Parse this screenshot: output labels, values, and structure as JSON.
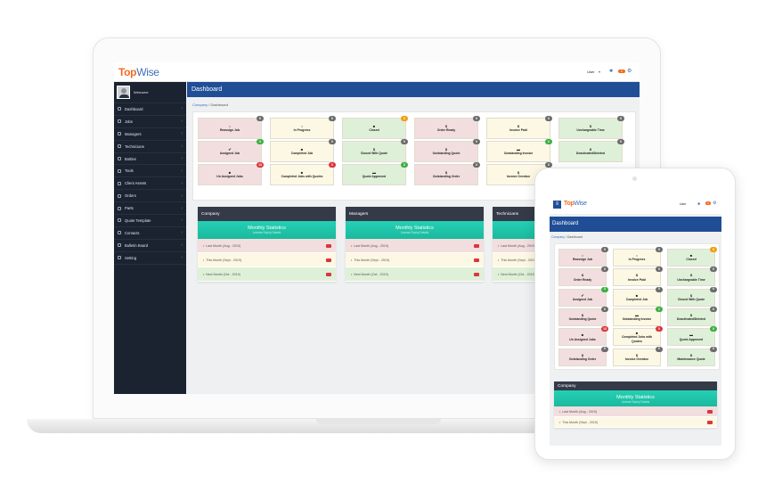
{
  "app": {
    "logo": "TopWise",
    "user_menu": "User",
    "notif_badge": "0"
  },
  "sidebar": {
    "welcome": "Welcome",
    "items": [
      "Dashboard",
      "Jobs",
      "Managers",
      "Technicians",
      "Bottles",
      "Tools",
      "Client Assets",
      "Orders",
      "Parts",
      "Quote Template",
      "Contacts",
      "Bulletin Board",
      "Setting"
    ]
  },
  "page": {
    "title": "Dashboard",
    "breadcrumb": [
      "Company",
      "Dashboard"
    ]
  },
  "colors": {
    "pink": "#f2dede",
    "yellow": "#fcf8e3",
    "green": "#dff0d8",
    "gray": "#6c6c6c",
    "badge_green": "#3cb043",
    "badge_red": "#d9363e",
    "badge_orange": "#f39c12",
    "header_blue": "#1f4e96",
    "teal": "#1fc8ab"
  },
  "laptop_tiles": [
    [
      {
        "label": "Reassign Job",
        "icon": "○",
        "count": "0",
        "badge": "gray"
      },
      {
        "label": "Assigned Job",
        "icon": "✔",
        "count": "3",
        "badge": "badge_green"
      },
      {
        "label": "Un Assigned Jobs",
        "icon": "■",
        "count": "13",
        "badge": "badge_red"
      }
    ],
    [
      {
        "label": "In Progress",
        "icon": "○",
        "count": "0",
        "badge": "gray"
      },
      {
        "label": "Completed Job",
        "icon": "■",
        "count": "0",
        "badge": "gray"
      },
      {
        "label": "Completed Jobs with Quotes",
        "icon": "■",
        "count": "0",
        "badge": "badge_red"
      }
    ],
    [
      {
        "label": "Closed",
        "icon": "■",
        "count": "0",
        "badge": "badge_orange"
      },
      {
        "label": "Closed With Quote",
        "icon": "$",
        "count": "0",
        "badge": "gray"
      },
      {
        "label": "Quote Approved",
        "icon": "▬",
        "count": "0",
        "badge": "badge_green"
      }
    ],
    [
      {
        "label": "Order Ready",
        "icon": "$",
        "count": "0",
        "badge": "gray"
      },
      {
        "label": "Outstanding Quote",
        "icon": "$",
        "count": "0",
        "badge": "gray"
      },
      {
        "label": "Outstanding Order",
        "icon": "$",
        "count": "0",
        "badge": "gray"
      }
    ],
    [
      {
        "label": "Invoice Paid",
        "icon": "$",
        "count": "0",
        "badge": "gray"
      },
      {
        "label": "Outstanding Invoice",
        "icon": "▬",
        "count": "2",
        "badge": "badge_green"
      },
      {
        "label": "Invoice Overdue",
        "icon": "$",
        "count": "0",
        "badge": "gray"
      }
    ],
    [
      {
        "label": "Unchargeable Time",
        "icon": "$",
        "count": "0",
        "badge": "gray"
      },
      {
        "label": "Deactivated/Deleted",
        "icon": "$",
        "count": "0",
        "badge": "gray"
      }
    ]
  ],
  "tablet_tiles": [
    [
      {
        "label": "Reassign Job",
        "icon": "○",
        "count": "0",
        "badge": "gray"
      },
      {
        "label": "In Progress",
        "icon": "○",
        "count": "0",
        "badge": "gray"
      },
      {
        "label": "Closed",
        "icon": "■",
        "count": "0",
        "badge": "badge_orange"
      }
    ],
    [
      {
        "label": "Order Ready",
        "icon": "$",
        "count": "0",
        "badge": "gray"
      },
      {
        "label": "Invoice Paid",
        "icon": "$",
        "count": "0",
        "badge": "gray"
      },
      {
        "label": "Unchargeable Time",
        "icon": "$",
        "count": "0",
        "badge": "gray"
      }
    ],
    [
      {
        "label": "Assigned Job",
        "icon": "✔",
        "count": "3",
        "badge": "badge_green"
      },
      {
        "label": "Completed Job",
        "icon": "■",
        "count": "0",
        "badge": "gray"
      },
      {
        "label": "Closed With Quote",
        "icon": "$",
        "count": "0",
        "badge": "gray"
      }
    ],
    [
      {
        "label": "Outstanding Quote",
        "icon": "$",
        "count": "0",
        "badge": "gray"
      },
      {
        "label": "Outstanding Invoice",
        "icon": "▬",
        "count": "2",
        "badge": "badge_green"
      },
      {
        "label": "Deactivated/Deleted",
        "icon": "$",
        "count": "0",
        "badge": "gray"
      }
    ],
    [
      {
        "label": "Un Assigned Jobs",
        "icon": "■",
        "count": "13",
        "badge": "badge_red"
      },
      {
        "label": "Completed Jobs with Quotes",
        "icon": "■",
        "count": "0",
        "badge": "badge_red"
      },
      {
        "label": "Quote Approved",
        "icon": "▬",
        "count": "0",
        "badge": "badge_green"
      }
    ],
    [
      {
        "label": "Outstanding Order",
        "icon": "$",
        "count": "0",
        "badge": "gray"
      },
      {
        "label": "Invoice Overdue",
        "icon": "$",
        "count": "0",
        "badge": "gray"
      },
      {
        "label": "Maintenance Quote",
        "icon": "$",
        "count": "0",
        "badge": "gray"
      }
    ]
  ],
  "panels": [
    {
      "title": "Company"
    },
    {
      "title": "Managers"
    },
    {
      "title": "Technicians"
    }
  ],
  "stats": {
    "title": "Monthly Statistics",
    "subtitle": "License Expiry Details",
    "rows": [
      "Last Month (Aug - 2019)",
      "This Month (Sept - 2019)",
      "Next Month (Oct - 2019)"
    ]
  }
}
